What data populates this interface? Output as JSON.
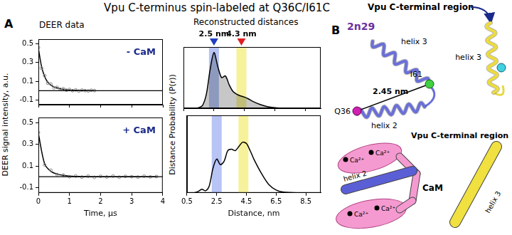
{
  "title": "Vpu C-terminus spin-labeled at Q36C/I61C",
  "panel_a": {
    "label": "A",
    "subtitles": [
      "DEER data",
      "Reconstructed distances"
    ]
  },
  "chart_data": [
    {
      "type": "line",
      "annotation": "- CaM",
      "ylabel": "DEER signal intensity, a.u.",
      "x": [
        0,
        0.1,
        0.2,
        0.3,
        0.4,
        0.5,
        0.6,
        0.7,
        0.8,
        0.9,
        1.0,
        1.1,
        1.2,
        1.3,
        1.4,
        1.5,
        1.6,
        1.7,
        1.8
      ],
      "xlim": [
        0,
        4
      ],
      "xticks": [
        0,
        1,
        2,
        3,
        4
      ],
      "ylim": [
        -0.15,
        0.55
      ],
      "yticks": [
        -0.1,
        0.1,
        0.3,
        0.5
      ],
      "hline": 0,
      "grid": false,
      "tick_labels": "y",
      "series": [
        {
          "color": "#888888",
          "marker": "circle",
          "line_style": "none",
          "values": [
            0.46,
            0.24,
            0.16,
            0.08,
            0.07,
            0.03,
            0.035,
            0.015,
            0.02,
            0.005,
            0.012,
            0.0,
            0.008,
            -0.004,
            0.006,
            0.0,
            -0.003,
            0.004,
            0.001
          ]
        },
        {
          "color": "#000000",
          "marker": "none",
          "line_style": "solid",
          "values": [
            0.45,
            0.26,
            0.15,
            0.09,
            0.06,
            0.04,
            0.03,
            0.02,
            0.015,
            0.01,
            0.008,
            0.005,
            0.004,
            0.003,
            0.002,
            0.002,
            0.001,
            0.001,
            0
          ]
        }
      ]
    },
    {
      "type": "line",
      "annotation": "+ CaM",
      "xlabel": "Time, µs",
      "x": [
        0,
        0.2,
        0.4,
        0.6,
        0.8,
        1.0,
        1.2,
        1.4,
        1.6,
        1.8,
        2.0,
        2.2,
        2.4,
        2.6,
        2.8,
        3.0,
        3.2,
        3.4,
        3.6,
        3.8
      ],
      "xlim": [
        0,
        4
      ],
      "xticks": [
        0,
        1,
        2,
        3,
        4
      ],
      "ylim": [
        -0.15,
        0.55
      ],
      "yticks": [
        -0.1,
        0.1,
        0.3,
        0.5
      ],
      "hline": 0,
      "grid": false,
      "tick_labels": true,
      "series": [
        {
          "color": "#888888",
          "marker": "circle",
          "line_style": "none",
          "values": [
            0.41,
            0.11,
            0.06,
            0.02,
            0.015,
            0.0,
            0.006,
            -0.004,
            0.005,
            -0.006,
            0.004,
            -0.003,
            0.006,
            -0.005,
            0.003,
            0.0,
            -0.004,
            0.005,
            -0.002,
            0.001
          ]
        },
        {
          "color": "#000000",
          "marker": "none",
          "line_style": "solid",
          "values": [
            0.4,
            0.12,
            0.05,
            0.025,
            0.012,
            0.006,
            0.003,
            0.001,
            0,
            0,
            0,
            0,
            0,
            0,
            0,
            0,
            0,
            0,
            0,
            0
          ]
        }
      ]
    },
    {
      "type": "line",
      "ylabel": "Distance Probability (P(r))",
      "x": [
        1.0,
        1.25,
        1.5,
        1.75,
        2.0,
        2.25,
        2.5,
        2.75,
        3.0,
        3.25,
        3.5,
        3.75,
        4.0,
        4.25,
        4.5,
        4.75,
        5.0,
        5.5,
        6.0,
        6.5,
        7.0,
        8.0,
        9.0
      ],
      "xlim": [
        0.5,
        9.5
      ],
      "xticks": [
        0.5,
        2.5,
        4.5,
        6.5,
        8.5
      ],
      "ylim": [
        0,
        1.1
      ],
      "grid": false,
      "tick_labels": false,
      "markers": [
        {
          "x": 2.5,
          "label": "2.5 nm",
          "color": "#1f3fbf"
        },
        {
          "x": 4.3,
          "label": "4.3 nm",
          "color": "#e02020"
        }
      ],
      "bands": [
        {
          "x": 2.5,
          "color": "#9fb0f0"
        },
        {
          "x": 4.3,
          "color": "#f3ee7a"
        }
      ],
      "series": [
        {
          "type": "area",
          "color": "#000000",
          "marker": "none",
          "line_style": "solid",
          "values": [
            0,
            0,
            0.01,
            0.05,
            0.25,
            0.7,
            1.0,
            0.75,
            0.55,
            0.58,
            0.42,
            0.3,
            0.25,
            0.22,
            0.2,
            0.17,
            0.13,
            0.07,
            0.03,
            0.01,
            0,
            0,
            0
          ]
        }
      ]
    },
    {
      "type": "line",
      "xlabel": "Distance, nm",
      "x": [
        1.0,
        1.25,
        1.5,
        1.75,
        2.0,
        2.25,
        2.5,
        2.75,
        3.0,
        3.25,
        3.5,
        3.75,
        4.0,
        4.25,
        4.5,
        4.75,
        5.0,
        5.5,
        6.0,
        6.5,
        7.0,
        8.0,
        9.0
      ],
      "xlim": [
        0.5,
        9.5
      ],
      "xticks": [
        0.5,
        2.5,
        4.5,
        6.5,
        8.5
      ],
      "ylim": [
        0,
        1.1
      ],
      "grid": false,
      "tick_labels": "x",
      "bands": [
        {
          "x": 2.5,
          "color": "#9fb0f0"
        },
        {
          "x": 4.3,
          "color": "#f3ee7a"
        }
      ],
      "series": [
        {
          "color": "#000000",
          "marker": "none",
          "line_style": "solid",
          "values": [
            0,
            0.02,
            0.05,
            0.03,
            0.1,
            0.35,
            0.48,
            0.4,
            0.45,
            0.6,
            0.62,
            0.6,
            0.66,
            0.72,
            0.7,
            0.6,
            0.48,
            0.28,
            0.12,
            0.04,
            0.01,
            0,
            0
          ]
        }
      ]
    }
  ],
  "diagram": {
    "label": "B",
    "heading": "Vpu C-terminal region",
    "pdb": "2n29",
    "structure": {
      "helix3": "helix 3",
      "helix2": "helix 2",
      "residue_a": "Q36",
      "residue_b": "I61",
      "distance": "2.45 nm",
      "other_helix3": "helix 3"
    },
    "cartoon": {
      "cam": "CaM",
      "ions": [
        "Ca²⁺",
        "Ca²⁺",
        "Ca²⁺",
        "Ca²⁺"
      ],
      "helix2": "helix 2",
      "helix3": "helix 3",
      "region": "Vpu C-terminal region"
    }
  }
}
